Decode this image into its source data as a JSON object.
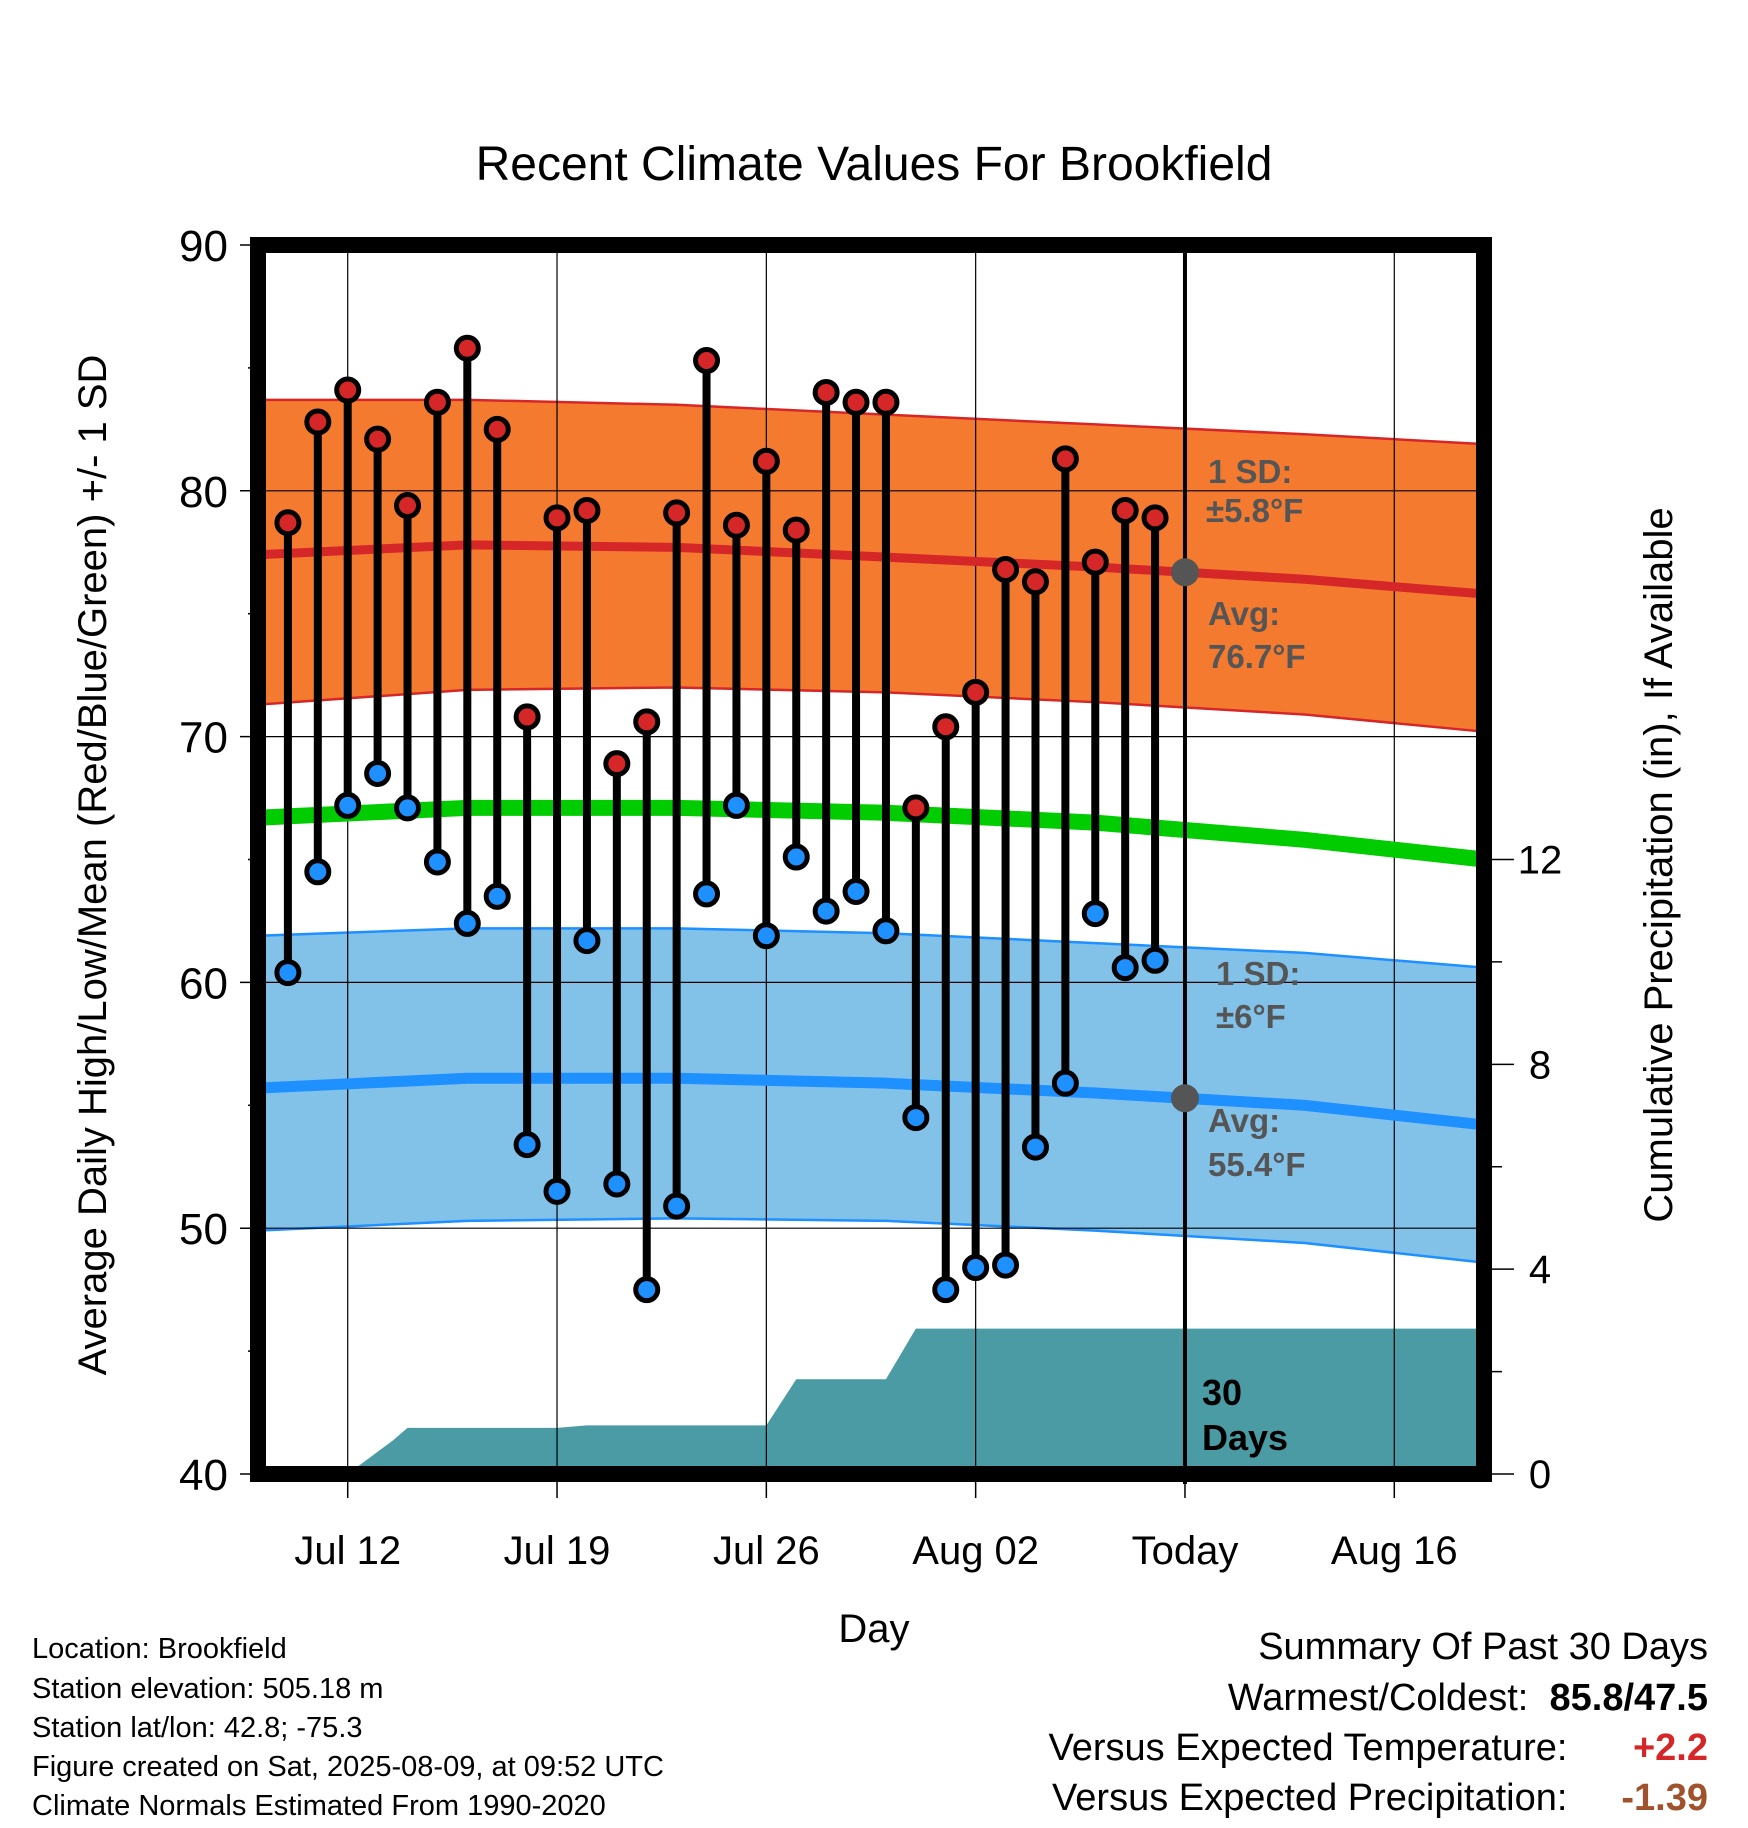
{
  "chart_data": {
    "type": "line",
    "title": "Recent Climate Values For Brookfield",
    "xlabel": "Day",
    "ylabel": "Average Daily High/Low/Mean (Red/Blue/Green) +/- 1 SD",
    "ylabel_right": "Cumulative Precipitation (in), If Available",
    "x_tick_labels": [
      "Jul 12",
      "Jul 19",
      "Jul 26",
      "Aug 02",
      "Today",
      "Aug 16"
    ],
    "x_tick_dates": [
      "2025-07-12",
      "2025-07-19",
      "2025-07-26",
      "2025-08-02",
      "2025-08-09",
      "2025-08-16"
    ],
    "xlim": [
      "2025-07-09",
      "2025-08-19"
    ],
    "today": "2025-08-09",
    "ylim": [
      40,
      90
    ],
    "y_ticks": [
      40,
      50,
      60,
      70,
      80,
      90
    ],
    "y2lim": [
      0,
      24
    ],
    "y2_ticks": [
      0,
      4,
      8,
      12
    ],
    "grid": true,
    "days": [
      "2025-07-10",
      "2025-07-11",
      "2025-07-12",
      "2025-07-13",
      "2025-07-14",
      "2025-07-15",
      "2025-07-16",
      "2025-07-17",
      "2025-07-18",
      "2025-07-19",
      "2025-07-20",
      "2025-07-21",
      "2025-07-22",
      "2025-07-23",
      "2025-07-24",
      "2025-07-25",
      "2025-07-26",
      "2025-07-27",
      "2025-07-28",
      "2025-07-29",
      "2025-07-30",
      "2025-07-31",
      "2025-08-01",
      "2025-08-02",
      "2025-08-03",
      "2025-08-04",
      "2025-08-05",
      "2025-08-06",
      "2025-08-07",
      "2025-08-08"
    ],
    "series": [
      {
        "name": "Daily High",
        "color": "#d62728",
        "values": [
          78.7,
          82.8,
          84.1,
          82.1,
          79.4,
          83.6,
          85.8,
          82.5,
          70.8,
          78.9,
          79.2,
          68.9,
          70.6,
          79.1,
          85.3,
          78.6,
          81.2,
          78.4,
          84.0,
          83.6,
          83.6,
          67.1,
          70.4,
          71.8,
          76.8,
          76.3,
          81.3,
          77.1,
          79.2,
          78.9
        ]
      },
      {
        "name": "Daily Low",
        "color": "#1e90ff",
        "values": [
          60.4,
          64.5,
          67.2,
          68.5,
          67.1,
          64.9,
          62.4,
          63.5,
          53.4,
          51.5,
          61.7,
          51.8,
          47.5,
          50.9,
          63.6,
          67.2,
          61.9,
          65.1,
          62.9,
          63.7,
          62.1,
          54.5,
          47.5,
          48.4,
          48.5,
          53.3,
          55.9,
          62.8,
          60.6,
          60.9
        ]
      },
      {
        "name": "Normal High",
        "color": "#d62728",
        "x": [
          "2025-07-09",
          "2025-07-16",
          "2025-07-23",
          "2025-07-30",
          "2025-08-06",
          "2025-08-13",
          "2025-08-19"
        ],
        "values": [
          77.4,
          77.8,
          77.7,
          77.3,
          76.9,
          76.4,
          75.8
        ]
      },
      {
        "name": "Normal High +1 SD",
        "color": "#f47a30",
        "x": [
          "2025-07-09",
          "2025-07-16",
          "2025-07-23",
          "2025-07-30",
          "2025-08-06",
          "2025-08-13",
          "2025-08-19"
        ],
        "values": [
          83.7,
          83.7,
          83.5,
          83.1,
          82.7,
          82.3,
          81.9
        ]
      },
      {
        "name": "Normal High -1 SD",
        "color": "#f47a30",
        "x": [
          "2025-07-09",
          "2025-07-16",
          "2025-07-23",
          "2025-07-30",
          "2025-08-06",
          "2025-08-13",
          "2025-08-19"
        ],
        "values": [
          71.3,
          71.9,
          72.0,
          71.8,
          71.4,
          70.9,
          70.2
        ]
      },
      {
        "name": "Normal Mean",
        "color": "#00cc00",
        "x": [
          "2025-07-09",
          "2025-07-16",
          "2025-07-23",
          "2025-07-30",
          "2025-08-06",
          "2025-08-13",
          "2025-08-19"
        ],
        "values": [
          66.7,
          67.1,
          67.1,
          66.9,
          66.5,
          65.8,
          65.0
        ]
      },
      {
        "name": "Normal Low",
        "color": "#1e90ff",
        "x": [
          "2025-07-09",
          "2025-07-16",
          "2025-07-23",
          "2025-07-30",
          "2025-08-06",
          "2025-08-13",
          "2025-08-19"
        ],
        "values": [
          55.7,
          56.1,
          56.1,
          55.9,
          55.5,
          55.0,
          54.2
        ]
      },
      {
        "name": "Normal Low +1 SD",
        "color": "#82c1e8",
        "x": [
          "2025-07-09",
          "2025-07-16",
          "2025-07-23",
          "2025-07-30",
          "2025-08-06",
          "2025-08-13",
          "2025-08-19"
        ],
        "values": [
          61.9,
          62.2,
          62.2,
          62.0,
          61.6,
          61.2,
          60.6
        ]
      },
      {
        "name": "Normal Low -1 SD",
        "color": "#82c1e8",
        "x": [
          "2025-07-09",
          "2025-07-16",
          "2025-07-23",
          "2025-07-30",
          "2025-08-06",
          "2025-08-13",
          "2025-08-19"
        ],
        "values": [
          49.9,
          50.3,
          50.4,
          50.3,
          49.9,
          49.4,
          48.6
        ]
      },
      {
        "name": "Cumulative Precipitation",
        "color": "#4a9ba4",
        "x": [
          "2025-07-09",
          "2025-07-12",
          "2025-07-13.5",
          "2025-07-14",
          "2025-07-19",
          "2025-07-20",
          "2025-07-26",
          "2025-07-27",
          "2025-07-30",
          "2025-07-31",
          "2025-08-19"
        ],
        "values": [
          0.0,
          0.0,
          0.65,
          0.9,
          0.9,
          0.95,
          0.95,
          1.85,
          1.85,
          2.84,
          2.84
        ]
      }
    ],
    "annotations": {
      "high_sd": [
        "1 SD:",
        "±5.8°F"
      ],
      "high_avg": [
        "Avg:",
        "76.7°F"
      ],
      "low_sd": [
        "1 SD:",
        "±6°F"
      ],
      "low_avg": [
        "Avg:",
        "55.4°F"
      ],
      "period": [
        "30",
        "Days"
      ]
    }
  },
  "info": {
    "location": "Location: Brookfield",
    "elevation": "Station elevation: 505.18 m",
    "latlon": "Station lat/lon: 42.8; -75.3",
    "created": "Figure created on Sat, 2025-08-09, at 09:52 UTC",
    "normals": "Climate Normals Estimated From 1990-2020"
  },
  "summary": {
    "title": "Summary Of Past 30 Days",
    "warm_cold_label": "Warmest/Coldest:",
    "warmest": "85.8",
    "coldest": "47.5",
    "temp_label": "Versus Expected Temperature:",
    "temp_value": "+2.2",
    "temp_color": "#d62728",
    "precip_label": "Versus Expected Precipitation:",
    "precip_value": "-1.39",
    "precip_color": "#a0522d"
  }
}
